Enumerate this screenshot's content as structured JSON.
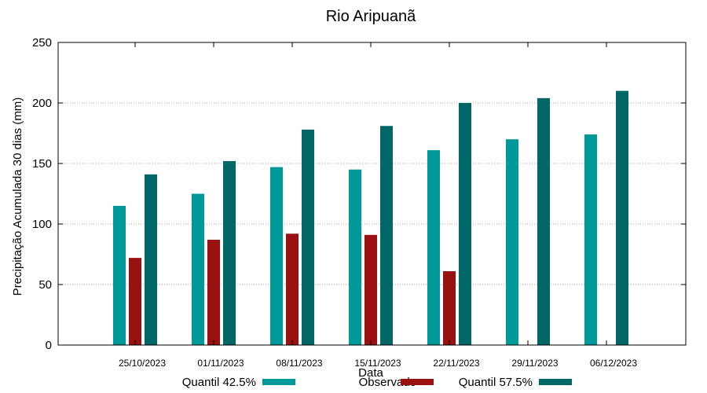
{
  "chart_data": {
    "type": "bar",
    "title": "Rio Aripuanã",
    "xlabel": "Data",
    "ylabel": "Precipitação Acumulada 30 dias (mm)",
    "ylim": [
      0,
      250
    ],
    "yticks": [
      0,
      50,
      100,
      150,
      200,
      250
    ],
    "grid": true,
    "legend_position": "bottom",
    "categories": [
      "25/10/2023",
      "01/11/2023",
      "08/11/2023",
      "15/11/2023",
      "22/11/2023",
      "29/11/2023",
      "06/12/2023"
    ],
    "series": [
      {
        "name": "Quantil 42.5%",
        "color": "#009999",
        "values": [
          115,
          125,
          147,
          145,
          161,
          170,
          174
        ]
      },
      {
        "name": "Observado",
        "color": "#991111",
        "values": [
          72,
          87,
          92,
          91,
          61,
          null,
          null
        ]
      },
      {
        "name": "Quantil 57.5%",
        "color": "#006666",
        "values": [
          141,
          152,
          178,
          181,
          200,
          204,
          210
        ]
      }
    ]
  }
}
